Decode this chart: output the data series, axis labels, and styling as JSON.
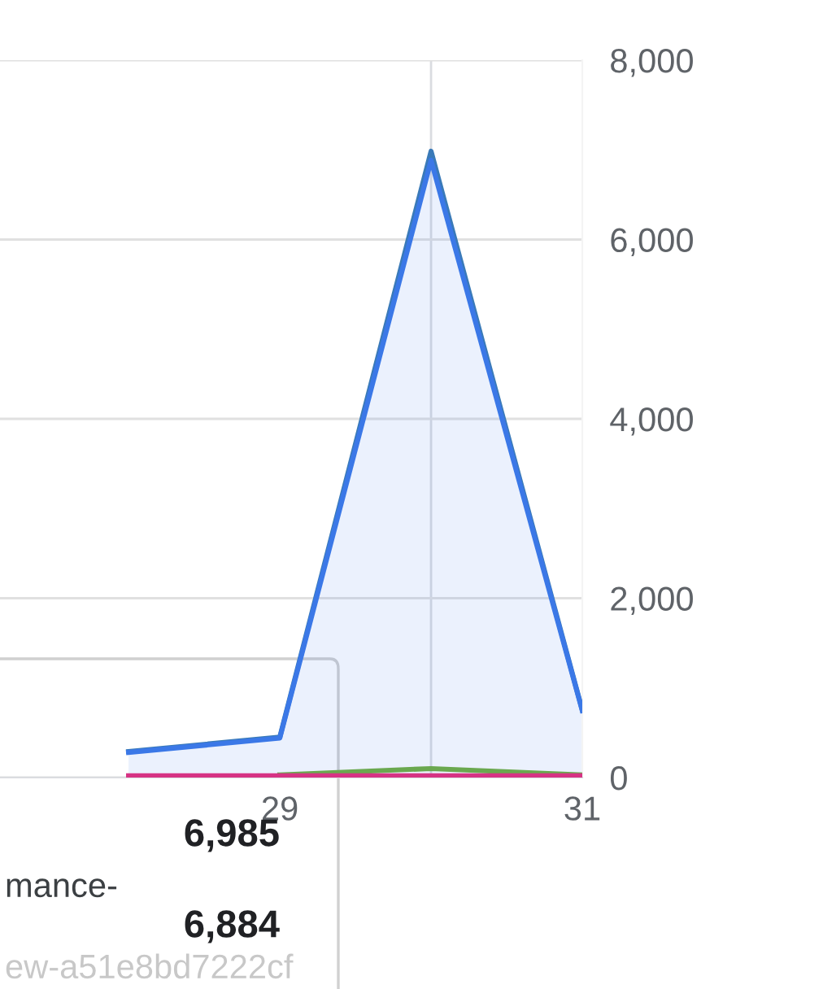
{
  "chart_data": {
    "type": "area",
    "x": [
      28,
      29,
      30,
      31
    ],
    "series": [
      {
        "type": "line",
        "color": "#3a7ab8",
        "values": [
          290,
          450,
          6985,
          750
        ]
      },
      {
        "color": "#3b78e7",
        "values": [
          280,
          440,
          6884,
          745
        ]
      },
      {
        "type": "line",
        "color": "#6aa84f",
        "values": [
          null,
          30,
          100,
          30
        ]
      },
      {
        "type": "line",
        "color": "#d63384",
        "values": [
          20,
          20,
          20,
          20
        ]
      }
    ],
    "xlim": [
      27.15,
      31
    ],
    "xticks": [
      29,
      31
    ],
    "ylim": [
      0,
      8000
    ],
    "yticks": [
      0,
      {
        "value": 2000,
        "label": "2,000"
      },
      {
        "value": 4000,
        "label": "4,000"
      },
      {
        "value": 6000,
        "label": "6,000"
      },
      {
        "value": 8000,
        "label": "8,000"
      }
    ],
    "grid": "y",
    "ref_lines": [
      {
        "axis": "x",
        "value": 30,
        "color": "#dadce0"
      }
    ],
    "annotations": [
      "6,985",
      "mance-",
      "6,884",
      "ew-a51e8bd7222cf"
    ]
  }
}
